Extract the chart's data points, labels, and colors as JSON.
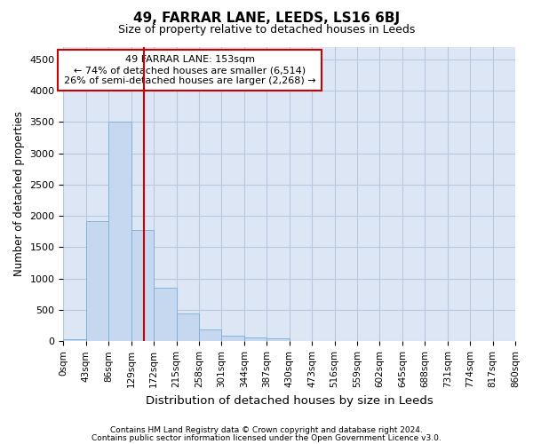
{
  "title": "49, FARRAR LANE, LEEDS, LS16 6BJ",
  "subtitle": "Size of property relative to detached houses in Leeds",
  "xlabel": "Distribution of detached houses by size in Leeds",
  "ylabel": "Number of detached properties",
  "footer_line1": "Contains HM Land Registry data © Crown copyright and database right 2024.",
  "footer_line2": "Contains public sector information licensed under the Open Government Licence v3.0.",
  "annotation_line1": "49 FARRAR LANE: 153sqm",
  "annotation_line2": "← 74% of detached houses are smaller (6,514)",
  "annotation_line3": "26% of semi-detached houses are larger (2,268) →",
  "property_size": 153,
  "bin_edges": [
    0,
    43,
    86,
    129,
    172,
    215,
    258,
    301,
    344,
    387,
    430,
    473,
    516,
    559,
    602,
    645,
    688,
    731,
    774,
    817,
    860
  ],
  "bar_heights": [
    30,
    1920,
    3500,
    1780,
    860,
    450,
    190,
    90,
    60,
    50,
    0,
    0,
    0,
    0,
    0,
    0,
    0,
    0,
    0,
    0
  ],
  "bar_color": "#c5d8f0",
  "bar_edge_color": "#7aafd4",
  "vline_color": "#cc0000",
  "ylim": [
    0,
    4700
  ],
  "yticks": [
    0,
    500,
    1000,
    1500,
    2000,
    2500,
    3000,
    3500,
    4000,
    4500
  ],
  "annotation_box_edge": "#cc0000",
  "grid_color": "#b8c8e0",
  "background_color": "#dce6f5"
}
